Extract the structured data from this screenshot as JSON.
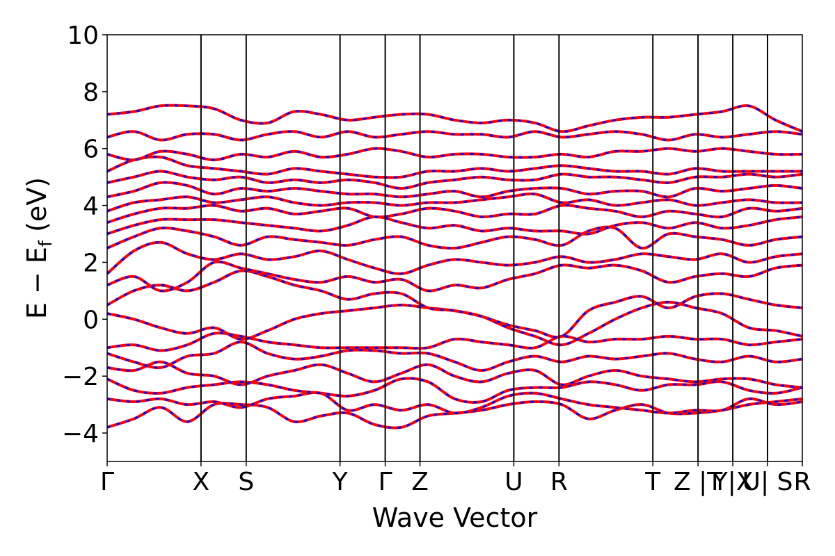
{
  "chart_data": {
    "type": "line",
    "title": "",
    "xlabel": "Wave Vector",
    "ylabel": "E − E",
    "ylabel_sub": "f",
    "ylabel_unit": " (eV)",
    "ylim": [
      -5,
      10
    ],
    "yticks": [
      {
        "value": -4,
        "label": "−4"
      },
      {
        "value": -2,
        "label": "−2"
      },
      {
        "value": 0,
        "label": "0"
      },
      {
        "value": 2,
        "label": "2"
      },
      {
        "value": 4,
        "label": "4"
      },
      {
        "value": 6,
        "label": "6"
      },
      {
        "value": 8,
        "label": "8"
      },
      {
        "value": 10,
        "label": "10"
      }
    ],
    "k_points": [
      {
        "label": "Γ",
        "pos": 0.0
      },
      {
        "label": "X",
        "pos": 1.35
      },
      {
        "label": "S",
        "pos": 2.0
      },
      {
        "label": "Y",
        "pos": 3.35
      },
      {
        "label": "Γ",
        "pos": 4.0
      },
      {
        "label": "Z",
        "pos": 4.5
      },
      {
        "label": "U",
        "pos": 5.85
      },
      {
        "label": "R",
        "pos": 6.5
      },
      {
        "label": "T",
        "pos": 7.85
      },
      {
        "label": "Z |T",
        "pos": 8.5
      },
      {
        "label": "Y|X",
        "pos": 9.0
      },
      {
        "label": "U| S",
        "pos": 9.5
      },
      {
        "label": "R",
        "pos": 10.0
      }
    ],
    "series": [
      {
        "color": "#ff0000",
        "style": "solid"
      },
      {
        "color": "#0000ff",
        "style": "dashed"
      }
    ],
    "bands": [
      [
        -3.8,
        -3.5,
        -3.1,
        -3.6,
        -3.0,
        -3.0,
        -3.1,
        -3.6,
        -3.4,
        -3.3,
        -3.7,
        -3.8,
        -3.4,
        -3.3,
        -3.2,
        -3.0,
        -2.9,
        -3.0,
        -3.5,
        -3.2,
        -3.0,
        -3.3,
        -3.3,
        -3.2,
        -3.0,
        -2.9,
        -2.8
      ],
      [
        -2.8,
        -2.9,
        -2.8,
        -3.0,
        -2.9,
        -3.1,
        -2.8,
        -2.7,
        -2.6,
        -3.2,
        -3.0,
        -3.2,
        -3.0,
        -3.3,
        -3.1,
        -2.7,
        -2.6,
        -2.8,
        -3.0,
        -3.1,
        -3.2,
        -3.3,
        -3.2,
        -3.2,
        -2.8,
        -3.0,
        -2.9
      ],
      [
        -2.1,
        -2.5,
        -2.6,
        -2.4,
        -2.3,
        -2.2,
        -2.3,
        -2.5,
        -2.6,
        -2.7,
        -2.5,
        -2.1,
        -2.2,
        -2.8,
        -2.9,
        -2.5,
        -2.4,
        -2.4,
        -2.2,
        -2.3,
        -2.5,
        -2.3,
        -2.3,
        -2.2,
        -2.5,
        -2.6,
        -2.4
      ],
      [
        -1.7,
        -1.8,
        -1.5,
        -1.9,
        -2.0,
        -2.3,
        -2.0,
        -1.8,
        -1.6,
        -1.9,
        -2.2,
        -1.9,
        -1.6,
        -2.0,
        -2.2,
        -1.9,
        -1.8,
        -2.3,
        -2.0,
        -1.8,
        -2.0,
        -2.1,
        -2.2,
        -2.1,
        -2.1,
        -2.3,
        -2.4
      ],
      [
        -1.2,
        -1.5,
        -1.7,
        -1.3,
        -1.2,
        -0.8,
        -1.2,
        -1.4,
        -1.3,
        -1.1,
        -1.1,
        -1.2,
        -1.2,
        -1.5,
        -1.8,
        -1.5,
        -1.3,
        -1.5,
        -1.3,
        -1.4,
        -1.3,
        -1.2,
        -1.4,
        -1.5,
        -1.3,
        -1.5,
        -1.4
      ],
      [
        -1.0,
        -0.9,
        -1.1,
        -0.9,
        -0.5,
        -0.6,
        -0.8,
        -0.9,
        -1.0,
        -1.0,
        -1.0,
        -1.0,
        -1.0,
        -0.7,
        -0.8,
        -0.9,
        -1.0,
        -0.6,
        -0.8,
        -0.7,
        -0.7,
        -0.6,
        -0.7,
        -0.7,
        -0.9,
        -0.8,
        -0.7
      ],
      [
        0.2,
        0.0,
        -0.3,
        -0.5,
        -0.3,
        -0.7,
        -0.4,
        0.0,
        0.2,
        0.3,
        0.4,
        0.5,
        0.4,
        0.3,
        0.1,
        -0.3,
        -0.6,
        -0.9,
        -0.5,
        0.0,
        0.4,
        0.6,
        0.4,
        0.2,
        -0.3,
        -0.4,
        -0.6
      ],
      [
        0.5,
        1.0,
        1.2,
        1.0,
        1.3,
        1.7,
        1.5,
        1.2,
        1.0,
        0.7,
        0.9,
        0.9,
        0.4,
        0.3,
        0.1,
        -0.2,
        -0.4,
        -0.6,
        0.3,
        0.6,
        0.8,
        0.4,
        0.8,
        0.9,
        0.7,
        0.5,
        0.4
      ],
      [
        1.2,
        1.5,
        1.0,
        1.3,
        2.0,
        1.8,
        1.6,
        1.4,
        1.3,
        1.5,
        1.3,
        1.4,
        1.0,
        1.2,
        1.1,
        1.4,
        1.6,
        1.9,
        1.8,
        1.9,
        1.7,
        1.3,
        1.5,
        1.6,
        1.5,
        1.8,
        1.9
      ],
      [
        1.6,
        2.4,
        2.7,
        2.3,
        2.1,
        2.3,
        2.1,
        2.2,
        2.4,
        2.1,
        1.8,
        1.6,
        1.9,
        2.1,
        2.0,
        1.9,
        2.0,
        2.2,
        2.0,
        2.1,
        2.3,
        2.2,
        2.1,
        2.3,
        2.0,
        2.2,
        2.3
      ],
      [
        2.5,
        2.9,
        3.2,
        3.1,
        2.9,
        2.6,
        2.9,
        2.8,
        2.7,
        2.6,
        2.8,
        2.9,
        2.6,
        2.5,
        2.7,
        2.9,
        2.8,
        2.6,
        3.1,
        3.2,
        2.5,
        3.0,
        2.9,
        2.8,
        2.6,
        2.8,
        2.9
      ],
      [
        3.0,
        3.3,
        3.5,
        3.5,
        3.5,
        3.4,
        3.3,
        3.2,
        3.1,
        3.3,
        3.6,
        3.4,
        3.2,
        3.3,
        3.1,
        3.2,
        3.1,
        3.1,
        3.0,
        3.3,
        3.4,
        3.2,
        3.4,
        3.2,
        3.3,
        3.5,
        3.6
      ],
      [
        3.4,
        3.7,
        3.9,
        3.9,
        4.0,
        3.8,
        3.9,
        3.7,
        3.8,
        3.9,
        3.6,
        3.7,
        3.9,
        3.8,
        3.6,
        3.7,
        3.7,
        4.0,
        3.9,
        3.8,
        3.6,
        3.8,
        3.7,
        3.6,
        3.9,
        3.8,
        3.9
      ],
      [
        3.8,
        4.1,
        4.2,
        4.3,
        4.1,
        4.2,
        4.3,
        4.1,
        4.0,
        4.1,
        4.1,
        4.0,
        4.1,
        4.1,
        4.2,
        4.3,
        4.4,
        4.1,
        4.2,
        4.0,
        4.1,
        4.2,
        4.0,
        4.1,
        4.2,
        4.1,
        4.1
      ],
      [
        4.3,
        4.5,
        4.8,
        4.7,
        4.4,
        4.6,
        4.5,
        4.6,
        4.5,
        4.4,
        4.4,
        4.3,
        4.4,
        4.5,
        4.3,
        4.5,
        4.6,
        4.6,
        4.4,
        4.5,
        4.5,
        4.3,
        4.6,
        4.5,
        4.6,
        4.7,
        4.6
      ],
      [
        4.8,
        5.0,
        5.2,
        5.0,
        4.9,
        5.0,
        4.8,
        4.9,
        4.8,
        4.9,
        4.8,
        4.6,
        4.8,
        4.9,
        5.0,
        4.9,
        4.9,
        5.1,
        5.0,
        5.0,
        4.9,
        4.8,
        5.0,
        5.0,
        5.1,
        5.0,
        5.1
      ],
      [
        5.2,
        5.6,
        5.7,
        5.4,
        5.3,
        5.2,
        5.1,
        5.3,
        5.2,
        5.1,
        5.0,
        5.0,
        5.2,
        5.2,
        5.3,
        5.2,
        5.3,
        5.4,
        5.3,
        5.2,
        5.2,
        5.1,
        5.3,
        5.2,
        5.2,
        5.2,
        5.2
      ],
      [
        5.8,
        5.6,
        5.9,
        5.8,
        5.6,
        5.8,
        5.7,
        5.9,
        5.7,
        5.8,
        6.0,
        5.9,
        5.7,
        5.8,
        5.8,
        5.7,
        5.7,
        5.8,
        5.7,
        5.9,
        5.9,
        6.0,
        5.9,
        6.0,
        5.9,
        5.8,
        5.8
      ],
      [
        6.4,
        6.6,
        6.3,
        6.5,
        6.5,
        6.3,
        6.5,
        6.6,
        6.4,
        6.6,
        6.4,
        6.5,
        6.6,
        6.5,
        6.5,
        6.4,
        6.6,
        6.4,
        6.5,
        6.6,
        6.5,
        6.3,
        6.5,
        6.4,
        6.5,
        6.6,
        6.5
      ],
      [
        7.2,
        7.3,
        7.5,
        7.5,
        7.4,
        7.0,
        6.9,
        7.3,
        7.2,
        7.0,
        7.1,
        7.2,
        7.2,
        7.0,
        6.9,
        7.0,
        6.9,
        6.6,
        6.8,
        7.0,
        7.1,
        7.1,
        7.2,
        7.3,
        7.5,
        7.0,
        6.6
      ]
    ]
  }
}
